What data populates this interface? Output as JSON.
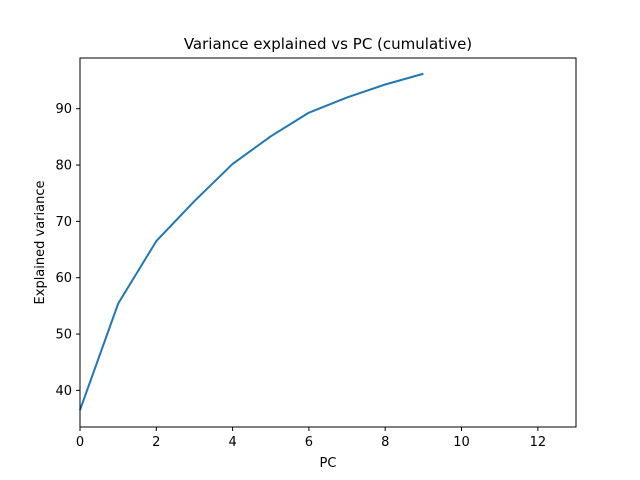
{
  "chart_data": {
    "type": "line",
    "title": "Variance explained vs PC (cumulative)",
    "xlabel": "PC",
    "ylabel": "Explained variance",
    "xlim": [
      0,
      13
    ],
    "ylim": [
      33.5,
      99
    ],
    "xticks": [
      0,
      2,
      4,
      6,
      8,
      10,
      12
    ],
    "yticks": [
      40,
      50,
      60,
      70,
      80,
      90
    ],
    "grid": false,
    "series": [
      {
        "color": "#1f77b4",
        "x": [
          0,
          1,
          2,
          3,
          4,
          5,
          6,
          7,
          8,
          9
        ],
        "y": [
          36.5,
          55.4,
          66.5,
          73.6,
          80.2,
          85.1,
          89.3,
          92.0,
          94.3,
          96.2
        ]
      }
    ]
  }
}
